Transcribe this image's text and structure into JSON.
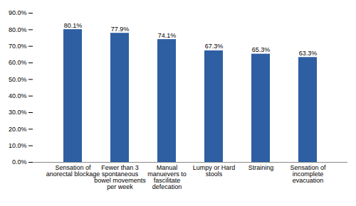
{
  "chart_data": {
    "type": "bar",
    "categories": [
      "Sensation of\nanorectal blockage",
      "Fewer than 3\nspontaneous\nbowel movements\nper week",
      "Manual\nmanuevers to\nfascilitate\ndefecation",
      "Lumpy or Hard\nstools",
      "Straining",
      "Sensation of\nincomplete\nevacuation"
    ],
    "values": [
      80.1,
      77.9,
      74.1,
      67.3,
      65.3,
      63.3
    ],
    "value_labels": [
      "80.1%",
      "77.9%",
      "74.1%",
      "67.3%",
      "65.3%",
      "63.3%"
    ],
    "data_labels": true,
    "color": "#2E5FA3",
    "ylim": [
      0,
      90
    ],
    "yticks": [
      {
        "value": 0,
        "label": "0.0%"
      },
      {
        "value": 10,
        "label": "10.0%"
      },
      {
        "value": 20,
        "label": "20.0%"
      },
      {
        "value": 30,
        "label": "30.0%"
      },
      {
        "value": 40,
        "label": "40.0%"
      },
      {
        "value": 50,
        "label": "50.0%"
      },
      {
        "value": 60,
        "label": "60.0%"
      },
      {
        "value": 70,
        "label": "70.0%"
      },
      {
        "value": 80,
        "label": "80.0%"
      },
      {
        "value": 90,
        "label": "90.0%"
      }
    ],
    "grid": false
  }
}
